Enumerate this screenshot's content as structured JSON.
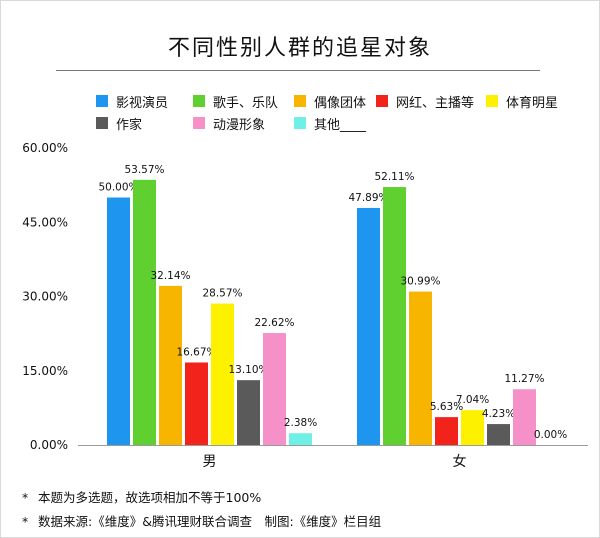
{
  "title": "不同性别人群的追星对象",
  "footnotes": [
    "本题为多选题，故选项相加不等于100%",
    "数据来源:《维度》&腾讯理财联合调查　制图:《维度》栏目组"
  ],
  "footnote_marker": "*",
  "chart_data": {
    "type": "bar",
    "categories": [
      "男",
      "女"
    ],
    "series": [
      {
        "name": "影视演员",
        "color": "#1e96f0",
        "values": [
          50.0,
          47.89
        ],
        "labels": [
          "50.00%",
          "47.89%"
        ]
      },
      {
        "name": "歌手、乐队",
        "color": "#5fd02f",
        "values": [
          53.57,
          52.11
        ],
        "labels": [
          "53.57%",
          "52.11%"
        ]
      },
      {
        "name": "偶像团体",
        "color": "#f7b500",
        "values": [
          32.14,
          30.99
        ],
        "labels": [
          "32.14%",
          "30.99%"
        ]
      },
      {
        "name": "网红、主播等",
        "color": "#f2231a",
        "values": [
          16.67,
          5.63
        ],
        "labels": [
          "16.67%",
          "5.63%"
        ]
      },
      {
        "name": "体育明星",
        "color": "#fdf100",
        "values": [
          28.57,
          7.04
        ],
        "labels": [
          "28.57%",
          "7.04%"
        ]
      },
      {
        "name": "作家",
        "color": "#5a5a5a",
        "values": [
          13.1,
          4.23
        ],
        "labels": [
          "13.10%",
          "4.23%"
        ]
      },
      {
        "name": "动漫形象",
        "color": "#f590c8",
        "values": [
          22.62,
          11.27
        ],
        "labels": [
          "22.62%",
          "11.27%"
        ]
      },
      {
        "name": "其他____",
        "color": "#6ef0e6",
        "values": [
          2.38,
          0.0
        ],
        "labels": [
          "2.38%",
          "0.00%"
        ]
      }
    ],
    "ylim": [
      0,
      60
    ],
    "y_ticks": [
      "0.00%",
      "15.00%",
      "30.00%",
      "45.00%",
      "60.00%"
    ],
    "y_tick_values": [
      0,
      15,
      30,
      45,
      60
    ],
    "legend_position": "top",
    "grid": false
  }
}
